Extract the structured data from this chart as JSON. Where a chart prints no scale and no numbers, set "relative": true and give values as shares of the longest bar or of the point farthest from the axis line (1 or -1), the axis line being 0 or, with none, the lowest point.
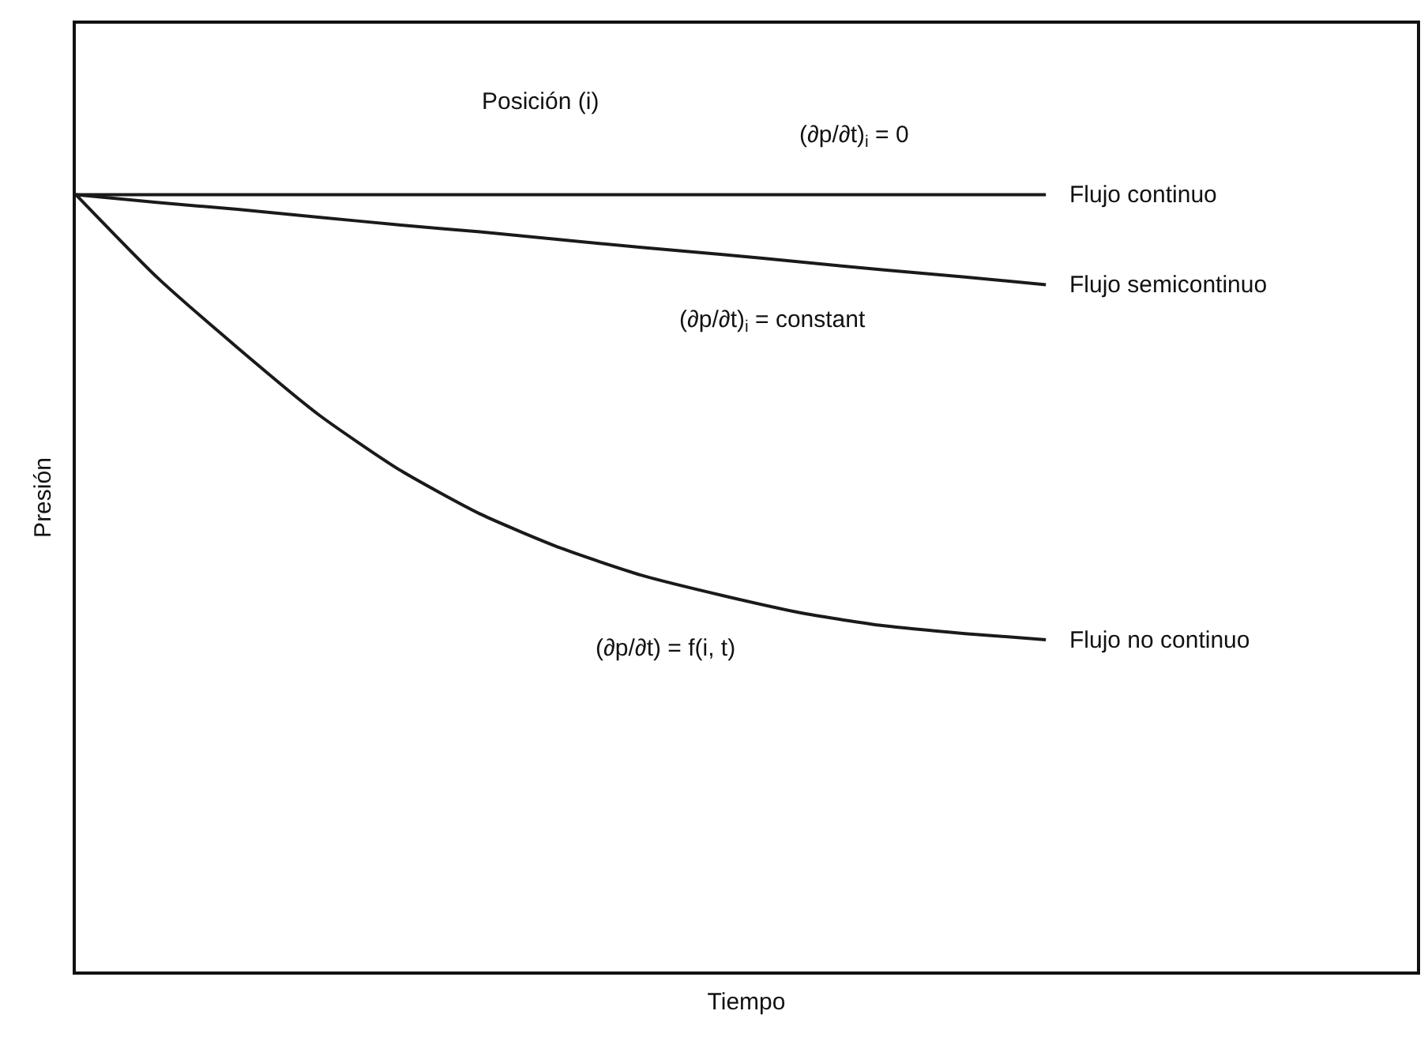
{
  "chart_data": {
    "type": "line",
    "relative": true,
    "xlabel": "Tiempo",
    "ylabel": "Presión",
    "legend": false,
    "line_style": "solid",
    "categories": [
      null,
      null,
      null,
      null,
      null,
      null,
      null,
      null,
      null,
      null,
      null,
      null,
      null
    ],
    "series": [
      {
        "name": "Flujo continuo",
        "color": "#1a1a1a",
        "values": [
          1,
          1,
          1,
          1,
          1,
          1,
          1,
          1,
          1,
          1,
          1,
          1,
          1
        ]
      },
      {
        "name": "Flujo semicontinuo",
        "color": "#1a1a1a",
        "values": [
          1,
          0.99,
          0.981,
          0.971,
          0.961,
          0.952,
          0.942,
          0.932,
          0.923,
          0.913,
          0.903,
          0.894,
          0.884
        ]
      },
      {
        "name": "Flujo no continuo",
        "color": "#1a1a1a",
        "values": [
          1,
          0.894,
          0.803,
          0.717,
          0.646,
          0.589,
          0.545,
          0.51,
          0.484,
          0.461,
          0.445,
          0.435,
          0.427
        ]
      }
    ],
    "annotations": [
      "Posición (i)",
      "(∂p/∂t)$_{i}$ = 0",
      "(∂p/∂t)$_{i}$ = constant",
      "(∂p/∂t) = f(i, t)"
    ]
  }
}
